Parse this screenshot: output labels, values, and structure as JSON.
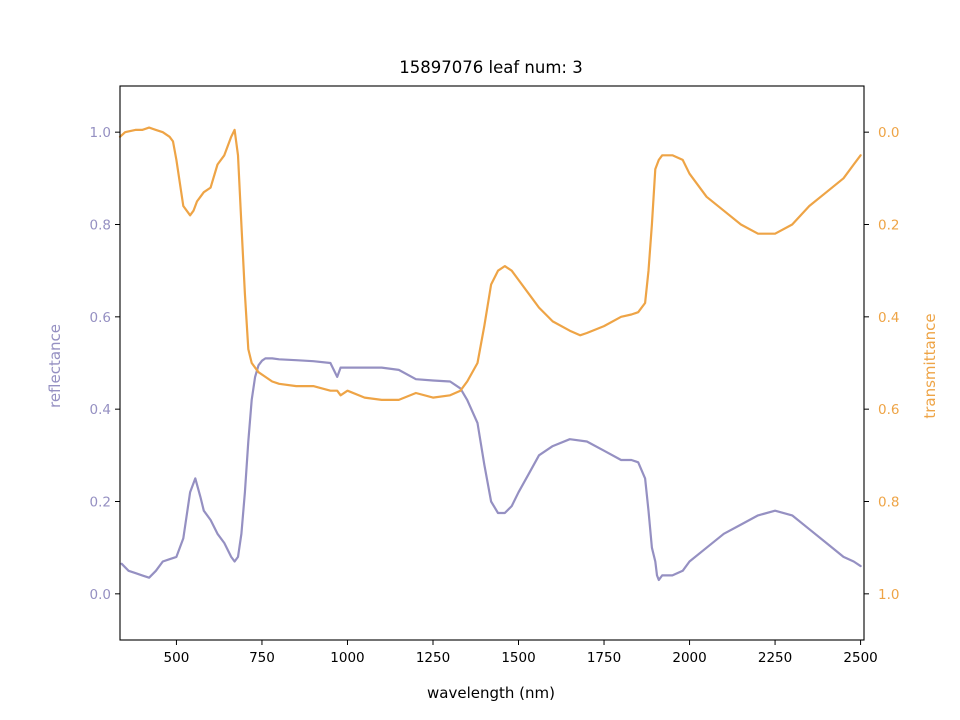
{
  "chart_data": {
    "type": "line",
    "title": "15897076 leaf num: 3",
    "xlabel": "wavelength (nm)",
    "ylabel_left": "reflectance",
    "ylabel_right": "transmittance",
    "xlim": [
      335,
      2510
    ],
    "ylim_left": [
      -0.1,
      1.1
    ],
    "ylim_right": [
      1.1,
      -0.1
    ],
    "x_ticks": [
      500,
      750,
      1000,
      1250,
      1500,
      1750,
      2000,
      2250,
      2500
    ],
    "y_ticks_left": [
      0.0,
      0.2,
      0.4,
      0.6,
      0.8,
      1.0
    ],
    "y_ticks_right": [
      0.0,
      0.2,
      0.4,
      0.6,
      0.8,
      1.0
    ],
    "x_tick_labels": [
      "500",
      "750",
      "1000",
      "1250",
      "1500",
      "1750",
      "2000",
      "2250",
      "2500"
    ],
    "y_tick_labels_left": [
      "0.0",
      "0.2",
      "0.4",
      "0.6",
      "0.8",
      "1.0"
    ],
    "y_tick_labels_right": [
      "0.0",
      "0.2",
      "0.4",
      "0.6",
      "0.8",
      "1.0"
    ],
    "grid": false,
    "colors": {
      "reflectance": "#9590c2",
      "transmittance": "#eea446"
    },
    "series": [
      {
        "axis": "left",
        "x": [
          340,
          360,
          380,
          400,
          420,
          440,
          460,
          480,
          500,
          520,
          540,
          555,
          570,
          580,
          600,
          620,
          640,
          660,
          670,
          680,
          690,
          700,
          710,
          720,
          730,
          740,
          750,
          760,
          780,
          800,
          850,
          900,
          950,
          970,
          980,
          1000,
          1050,
          1100,
          1150,
          1200,
          1250,
          1300,
          1330,
          1350,
          1380,
          1400,
          1420,
          1440,
          1460,
          1480,
          1500,
          1530,
          1560,
          1600,
          1650,
          1700,
          1750,
          1800,
          1830,
          1850,
          1870,
          1880,
          1890,
          1900,
          1905,
          1910,
          1920,
          1950,
          1980,
          2000,
          2050,
          2100,
          2150,
          2200,
          2250,
          2300,
          2350,
          2400,
          2450,
          2480,
          2500
        ],
        "y": [
          0.065,
          0.05,
          0.045,
          0.04,
          0.035,
          0.05,
          0.07,
          0.075,
          0.08,
          0.12,
          0.22,
          0.25,
          0.21,
          0.18,
          0.16,
          0.13,
          0.11,
          0.08,
          0.07,
          0.08,
          0.13,
          0.22,
          0.33,
          0.42,
          0.47,
          0.495,
          0.505,
          0.51,
          0.51,
          0.508,
          0.506,
          0.504,
          0.5,
          0.47,
          0.49,
          0.49,
          0.49,
          0.49,
          0.485,
          0.465,
          0.462,
          0.46,
          0.445,
          0.42,
          0.37,
          0.28,
          0.2,
          0.175,
          0.175,
          0.19,
          0.22,
          0.26,
          0.3,
          0.32,
          0.335,
          0.33,
          0.31,
          0.29,
          0.29,
          0.285,
          0.25,
          0.18,
          0.1,
          0.07,
          0.04,
          0.03,
          0.04,
          0.04,
          0.05,
          0.07,
          0.1,
          0.13,
          0.15,
          0.17,
          0.18,
          0.17,
          0.14,
          0.11,
          0.08,
          0.07,
          0.06
        ]
      },
      {
        "axis": "right",
        "x": [
          335,
          350,
          380,
          400,
          420,
          440,
          460,
          480,
          490,
          500,
          520,
          540,
          550,
          560,
          570,
          580,
          600,
          620,
          640,
          660,
          670,
          680,
          690,
          700,
          710,
          720,
          740,
          760,
          780,
          800,
          850,
          900,
          950,
          970,
          980,
          1000,
          1050,
          1100,
          1150,
          1200,
          1250,
          1300,
          1330,
          1350,
          1380,
          1400,
          1420,
          1440,
          1460,
          1480,
          1500,
          1530,
          1560,
          1600,
          1650,
          1680,
          1700,
          1750,
          1800,
          1830,
          1850,
          1870,
          1880,
          1890,
          1900,
          1910,
          1920,
          1950,
          1980,
          2000,
          2050,
          2100,
          2150,
          2200,
          2250,
          2300,
          2350,
          2400,
          2450,
          2480,
          2500
        ],
        "y": [
          0.01,
          0.0,
          -0.005,
          -0.005,
          -0.01,
          -0.005,
          0.0,
          0.01,
          0.02,
          0.06,
          0.16,
          0.18,
          0.17,
          0.15,
          0.14,
          0.13,
          0.12,
          0.07,
          0.05,
          0.01,
          -0.005,
          0.05,
          0.2,
          0.35,
          0.47,
          0.5,
          0.52,
          0.53,
          0.54,
          0.545,
          0.55,
          0.55,
          0.56,
          0.56,
          0.57,
          0.56,
          0.575,
          0.58,
          0.58,
          0.565,
          0.575,
          0.57,
          0.56,
          0.54,
          0.5,
          0.42,
          0.33,
          0.3,
          0.29,
          0.3,
          0.32,
          0.35,
          0.38,
          0.41,
          0.43,
          0.44,
          0.435,
          0.42,
          0.4,
          0.395,
          0.39,
          0.37,
          0.3,
          0.2,
          0.08,
          0.06,
          0.05,
          0.05,
          0.06,
          0.09,
          0.14,
          0.17,
          0.2,
          0.22,
          0.22,
          0.2,
          0.16,
          0.13,
          0.1,
          0.07,
          0.05
        ]
      }
    ]
  }
}
